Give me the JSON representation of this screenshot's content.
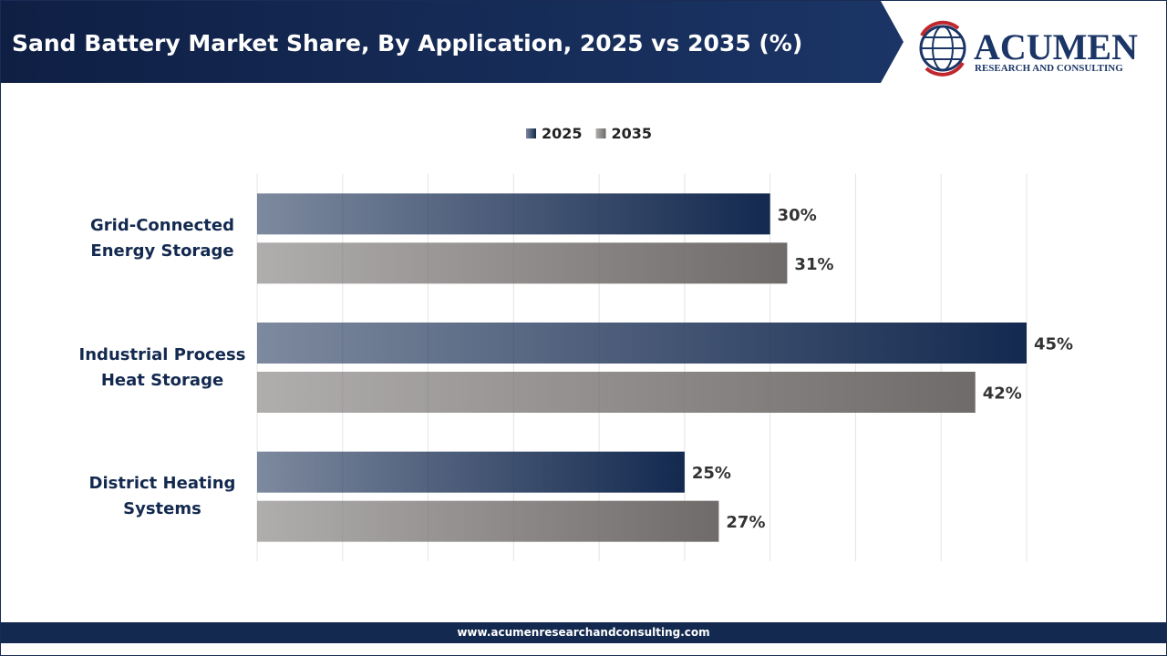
{
  "header": {
    "title": "Sand Battery Market Share, By Application, 2025 vs 2035 (%)",
    "logo_name": "ACUMEN",
    "logo_tagline": "RESEARCH AND CONSULTING"
  },
  "chart_data": {
    "type": "hbar",
    "categories": [
      "Grid-Connected Energy Storage",
      "Industrial Process Heat Storage",
      "District Heating Systems"
    ],
    "series": [
      {
        "name": "2025",
        "color": "#13294f",
        "values": [
          30,
          45,
          25
        ],
        "value_labels": [
          "30%",
          "45%",
          "25%"
        ]
      },
      {
        "name": "2035",
        "color": "#6f6b6a",
        "values": [
          31,
          42,
          27
        ],
        "value_labels": [
          "31%",
          "42%",
          "27%"
        ]
      }
    ],
    "xlim": [
      0,
      45
    ],
    "xticks": [
      0,
      5,
      10,
      15,
      20,
      25,
      30,
      35,
      40,
      45
    ],
    "grid": true,
    "legend": "top"
  },
  "footer": {
    "url": "www.acumenresearchandconsulting.com"
  }
}
